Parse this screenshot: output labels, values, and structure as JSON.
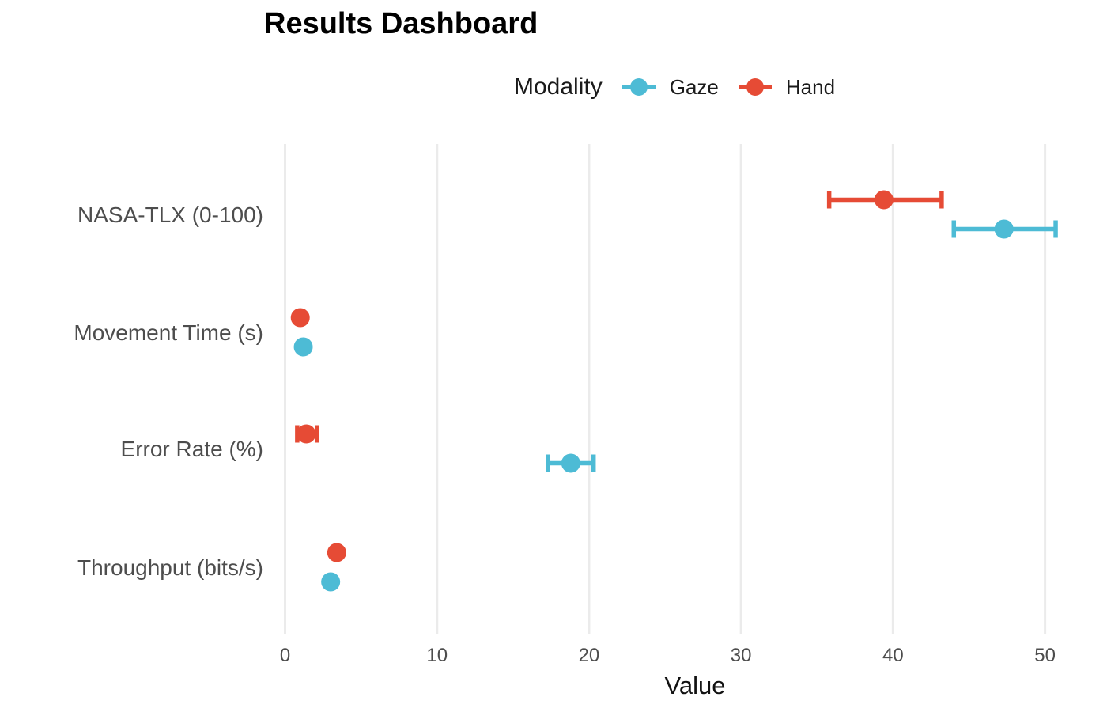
{
  "title": "Results Dashboard",
  "legend": {
    "title": "Modality",
    "position": "top"
  },
  "axes": {
    "x_label": "Value"
  },
  "colors": {
    "gaze": "#4DBBD5",
    "hand": "#E64B35",
    "gridline": "#EBEBEB",
    "axis_text": "#4D4D4D",
    "title_text": "#000000"
  },
  "chart_data": {
    "type": "scatter",
    "subtype": "horizontal-dot-plot-with-error-bars",
    "title": "Results Dashboard",
    "xlabel": "Value",
    "ylabel": "",
    "x_ticks": [
      0,
      10,
      20,
      30,
      40,
      50
    ],
    "xlim": [
      -0.7,
      51.3
    ],
    "grid": "vertical-major-only",
    "legend_title": "Modality",
    "legend_position": "top",
    "categories": [
      "NASA-TLX (0-100)",
      "Movement Time (s)",
      "Error Rate (%)",
      "Throughput (bits/s)"
    ],
    "series": [
      {
        "name": "Gaze",
        "color": "#4DBBD5",
        "means": [
          47.3,
          1.2,
          18.8,
          3.0
        ],
        "ci_low": [
          44.0,
          1.1,
          17.3,
          2.9
        ],
        "ci_high": [
          50.7,
          1.3,
          20.3,
          3.1
        ]
      },
      {
        "name": "Hand",
        "color": "#E64B35",
        "means": [
          39.4,
          1.0,
          1.4,
          3.4
        ],
        "ci_low": [
          35.8,
          0.9,
          0.8,
          3.3
        ],
        "ci_high": [
          43.2,
          1.1,
          2.1,
          3.5
        ]
      }
    ]
  }
}
